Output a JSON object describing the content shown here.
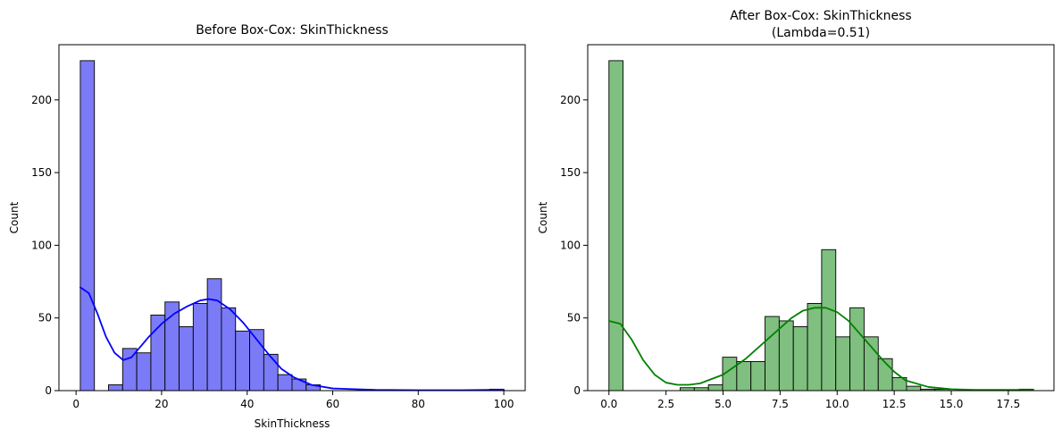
{
  "chart_data": [
    {
      "type": "histogram",
      "title": "Before Box-Cox: SkinThickness",
      "xlabel": "SkinThickness",
      "ylabel": "Count",
      "xlim": [
        -4,
        105
      ],
      "ylim": [
        0,
        238
      ],
      "xticks": [
        0,
        20,
        40,
        60,
        80,
        100
      ],
      "yticks": [
        0,
        50,
        100,
        150,
        200
      ],
      "bar_color": "#7b7bf7",
      "line_color": "#0000ff",
      "bins": [
        {
          "x0": 0.99,
          "x1": 4.29,
          "count": 227
        },
        {
          "x0": 4.29,
          "x1": 7.59,
          "count": 0
        },
        {
          "x0": 7.59,
          "x1": 10.89,
          "count": 4
        },
        {
          "x0": 10.89,
          "x1": 14.19,
          "count": 29
        },
        {
          "x0": 14.19,
          "x1": 17.49,
          "count": 26
        },
        {
          "x0": 17.49,
          "x1": 20.79,
          "count": 52
        },
        {
          "x0": 20.79,
          "x1": 24.09,
          "count": 61
        },
        {
          "x0": 24.09,
          "x1": 27.39,
          "count": 44
        },
        {
          "x0": 27.39,
          "x1": 30.69,
          "count": 60
        },
        {
          "x0": 30.69,
          "x1": 33.99,
          "count": 77
        },
        {
          "x0": 33.99,
          "x1": 37.29,
          "count": 57
        },
        {
          "x0": 37.29,
          "x1": 40.59,
          "count": 41
        },
        {
          "x0": 40.59,
          "x1": 43.89,
          "count": 42
        },
        {
          "x0": 43.89,
          "x1": 47.19,
          "count": 25
        },
        {
          "x0": 47.19,
          "x1": 50.49,
          "count": 11
        },
        {
          "x0": 50.49,
          "x1": 53.79,
          "count": 8
        },
        {
          "x0": 53.79,
          "x1": 57.09,
          "count": 4
        },
        {
          "x0": 96.69,
          "x1": 99.99,
          "count": 1
        }
      ],
      "kde": {
        "x": [
          1,
          3,
          5,
          7,
          9,
          11,
          13,
          15,
          17,
          20,
          23,
          26,
          29,
          31,
          33,
          36,
          39,
          42,
          45,
          48,
          51,
          55,
          60,
          70,
          80,
          90,
          100
        ],
        "y": [
          71,
          67,
          53,
          37,
          26,
          21,
          23,
          30,
          37,
          46,
          53,
          58,
          62,
          63,
          62,
          56,
          47,
          36,
          25,
          15,
          9,
          4,
          1.5,
          0.5,
          0.3,
          0.3,
          0.6
        ]
      }
    },
    {
      "type": "histogram",
      "title": "After Box-Cox: SkinThickness",
      "subtitle": "(Lambda=0.51)",
      "xlabel": "",
      "ylabel": "Count",
      "xlim": [
        -0.93,
        19.5
      ],
      "ylim": [
        0,
        238
      ],
      "xticks": [
        0.0,
        2.5,
        5.0,
        7.5,
        10.0,
        12.5,
        15.0,
        17.5
      ],
      "yticks": [
        0,
        50,
        100,
        150,
        200
      ],
      "bar_color": "#7fbf7f",
      "line_color": "#008000",
      "bins": [
        {
          "x0": 0.0,
          "x1": 0.62,
          "count": 227
        },
        {
          "x0": 3.12,
          "x1": 3.74,
          "count": 2
        },
        {
          "x0": 3.74,
          "x1": 4.36,
          "count": 2
        },
        {
          "x0": 4.36,
          "x1": 4.98,
          "count": 4
        },
        {
          "x0": 4.98,
          "x1": 5.6,
          "count": 23
        },
        {
          "x0": 5.6,
          "x1": 6.22,
          "count": 20
        },
        {
          "x0": 6.22,
          "x1": 6.84,
          "count": 20
        },
        {
          "x0": 6.84,
          "x1": 7.46,
          "count": 51
        },
        {
          "x0": 7.46,
          "x1": 8.08,
          "count": 48
        },
        {
          "x0": 8.08,
          "x1": 8.7,
          "count": 44
        },
        {
          "x0": 8.7,
          "x1": 9.32,
          "count": 60
        },
        {
          "x0": 9.32,
          "x1": 9.94,
          "count": 97
        },
        {
          "x0": 9.94,
          "x1": 10.56,
          "count": 37
        },
        {
          "x0": 10.56,
          "x1": 11.18,
          "count": 57
        },
        {
          "x0": 11.18,
          "x1": 11.8,
          "count": 37
        },
        {
          "x0": 11.8,
          "x1": 12.42,
          "count": 22
        },
        {
          "x0": 12.42,
          "x1": 13.04,
          "count": 9
        },
        {
          "x0": 13.04,
          "x1": 13.66,
          "count": 3
        },
        {
          "x0": 13.66,
          "x1": 14.28,
          "count": 1
        },
        {
          "x0": 14.28,
          "x1": 14.9,
          "count": 1
        },
        {
          "x0": 17.98,
          "x1": 18.6,
          "count": 1
        }
      ],
      "kde": {
        "x": [
          0,
          0.5,
          1,
          1.5,
          2,
          2.5,
          3,
          3.5,
          4,
          5,
          6,
          7,
          8,
          8.5,
          9,
          9.5,
          10,
          10.5,
          11,
          11.5,
          12,
          12.5,
          13,
          14,
          15,
          16,
          17,
          18,
          18.6
        ],
        "y": [
          48,
          46,
          35,
          21,
          11,
          5.5,
          4,
          4,
          5,
          11,
          22,
          36,
          50,
          55,
          57,
          57,
          54,
          48,
          39,
          30,
          21,
          13,
          7,
          2.5,
          1,
          0.5,
          0.5,
          0.5,
          0.5
        ]
      }
    }
  ]
}
